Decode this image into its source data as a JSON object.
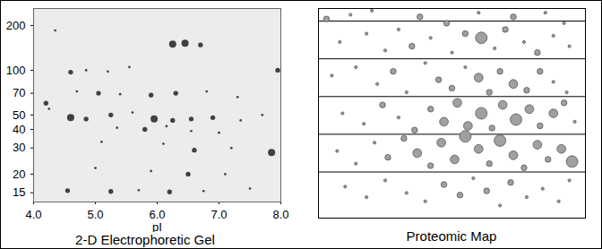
{
  "chart_data": [
    {
      "type": "scatter",
      "title": "2-D Electrophoretic Gel",
      "xlabel": "pI",
      "log": "y",
      "color": "#222222",
      "x": [
        4.2,
        4.25,
        4.6,
        4.85,
        5.2,
        5.55,
        4.7,
        5.05,
        5.4,
        5.9,
        6.3,
        6.8,
        7.3,
        4.6,
        4.85,
        5.25,
        5.6,
        5.95,
        6.25,
        6.55,
        6.9,
        7.35,
        7.7,
        5.35,
        5.8,
        6.15,
        6.55,
        7.0,
        5.1,
        6.1,
        6.6,
        7.2,
        7.85,
        5.0,
        5.9,
        6.5,
        7.1,
        4.55,
        5.25,
        5.7,
        6.2,
        6.75,
        7.5,
        6.25,
        6.45,
        6.7,
        4.35,
        7.95
      ],
      "values": [
        60,
        55,
        97,
        100,
        98,
        105,
        72,
        70,
        69,
        68,
        70,
        72,
        66,
        48,
        47,
        50,
        52,
        47,
        46,
        47,
        48,
        46,
        50,
        41,
        40,
        42,
        39,
        38,
        33,
        32,
        29,
        30,
        28,
        22,
        21,
        20,
        20,
        15.5,
        15.3,
        15.6,
        15.2,
        15.4,
        16,
        150,
        152,
        148,
        185,
        100
      ],
      "sizes": [
        2,
        1,
        2,
        1,
        1,
        1,
        1,
        2,
        1,
        2,
        2,
        1,
        1,
        3,
        2,
        2,
        1,
        3,
        2,
        2,
        2,
        1,
        1,
        1,
        2,
        1,
        1,
        1,
        1,
        1,
        2,
        1,
        3,
        1,
        1,
        2,
        1,
        2,
        2,
        1,
        2,
        1,
        1,
        3,
        3,
        2,
        1,
        2
      ],
      "xlim": [
        4,
        8
      ],
      "xticks": [
        {
          "value": 4,
          "label": "4.0"
        },
        {
          "value": 5,
          "label": "5.0"
        },
        {
          "value": 6,
          "label": "6.0"
        },
        {
          "value": 7,
          "label": "7.0"
        },
        {
          "value": 8,
          "label": "8.0"
        }
      ],
      "ylim": [
        13,
        260
      ],
      "yticks": [
        15,
        20,
        30,
        40,
        50,
        70,
        100,
        200
      ]
    },
    {
      "type": "scatter",
      "title": "Proteomic Map",
      "color": "#a0a0a0",
      "tick_labels": false,
      "grid": true,
      "x": [
        3,
        12,
        20,
        38,
        48,
        60,
        73,
        85,
        92,
        61,
        8,
        18,
        25,
        30,
        35,
        42,
        50,
        55,
        66,
        70,
        77,
        82,
        88,
        94,
        5,
        14,
        22,
        28,
        33,
        40,
        45,
        50,
        55,
        60,
        64,
        68,
        73,
        78,
        83,
        88,
        93,
        9,
        17,
        24,
        30,
        36,
        42,
        47,
        52,
        56,
        61,
        65,
        69,
        74,
        79,
        83,
        88,
        92,
        96,
        7,
        14,
        21,
        26,
        32,
        37,
        42,
        46,
        51,
        55,
        60,
        64,
        68,
        73,
        77,
        82,
        86,
        91,
        95,
        10,
        18,
        25,
        33,
        40,
        47,
        53,
        58,
        63,
        68,
        72,
        78,
        84,
        90,
        94
      ],
      "values": [
        95,
        97,
        99,
        96,
        93,
        98,
        96,
        98,
        93,
        86,
        84,
        88,
        80,
        90,
        82,
        86,
        79,
        88,
        81,
        90,
        84,
        79,
        87,
        82,
        68,
        72,
        64,
        70,
        60,
        74,
        66,
        62,
        72,
        67,
        60,
        70,
        64,
        61,
        70,
        65,
        60,
        50,
        45,
        54,
        48,
        42,
        52,
        46,
        55,
        44,
        50,
        43,
        54,
        47,
        52,
        44,
        50,
        55,
        46,
        32,
        26,
        36,
        29,
        38,
        31,
        25,
        36,
        28,
        39,
        33,
        26,
        37,
        30,
        24,
        35,
        28,
        33,
        27,
        15,
        10,
        18,
        12,
        8,
        16,
        11,
        19,
        13,
        6,
        17,
        10,
        14,
        8,
        18
      ],
      "sizes": [
        2,
        1,
        1,
        2,
        2,
        1,
        2,
        1,
        1,
        4,
        1,
        1,
        1,
        1,
        2,
        1,
        1,
        2,
        1,
        2,
        1,
        2,
        1,
        1,
        1,
        1,
        1,
        2,
        1,
        1,
        2,
        2,
        1,
        3,
        2,
        2,
        3,
        2,
        2,
        1,
        1,
        1,
        1,
        2,
        1,
        2,
        2,
        3,
        3,
        3,
        4,
        2,
        3,
        4,
        3,
        2,
        3,
        2,
        1,
        1,
        1,
        1,
        2,
        2,
        3,
        2,
        3,
        3,
        4,
        3,
        2,
        4,
        3,
        2,
        3,
        2,
        3,
        4,
        1,
        1,
        1,
        1,
        1,
        2,
        2,
        1,
        2,
        1,
        2,
        1,
        1,
        1,
        1
      ],
      "xlim": [
        0,
        100
      ],
      "xticks": [],
      "ylim": [
        0,
        100
      ],
      "yticks": [
        22,
        40,
        58,
        76,
        94
      ]
    }
  ]
}
